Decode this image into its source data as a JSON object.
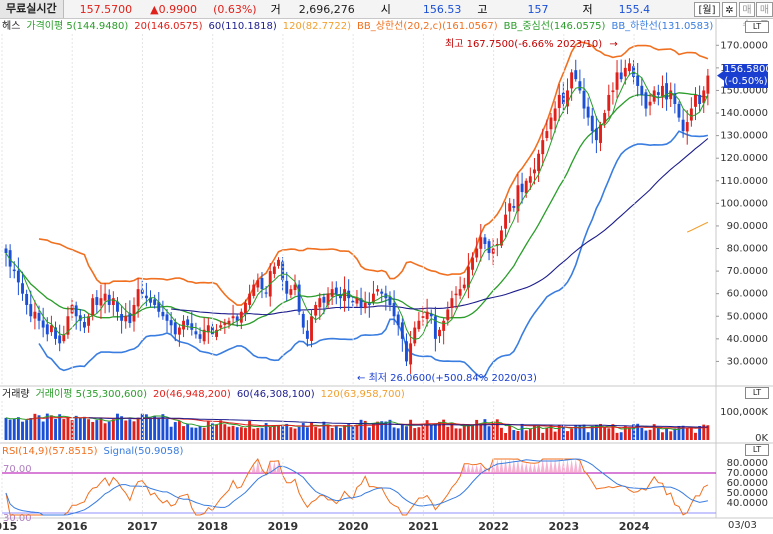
{
  "topbar": {
    "label": "무료실시간",
    "price": "157.5700",
    "change": "▲0.9900",
    "change_pct": "(0.63%)",
    "volume_label": "거",
    "volume": "2,696,276",
    "open_label": "시",
    "open": "156.53",
    "high_label": "고",
    "high": "157",
    "low_label": "저",
    "low": "155.4",
    "period_button": "[월]",
    "settings_icon": "gear-icon",
    "buy_button": "매수",
    "sell_button": "매도"
  },
  "price_legend": {
    "series": "헤스",
    "ma5": "가격이평 5(144.9480)",
    "ma20": "20(146.0575)",
    "ma60": "60(110.1818)",
    "ma120": "120(82.7722)",
    "bb_upper": "BB_상한선(20,2,c)(161.0567)",
    "bb_mid": "BB_중심선(146.0575)",
    "bb_lower": "BB_하한선(131.0583)"
  },
  "volume_legend": {
    "series": "거래량",
    "vma5": "거래이평 5(35,300,600)",
    "vma20": "20(46,948,200)",
    "vma60": "60(46,308,100)",
    "vma120": "120(63,958,700)"
  },
  "rsi_legend": {
    "rsi": "RSI(14,9)(57.8515)",
    "signal": "Signal(50.9058)"
  },
  "annotations": {
    "high": "최고 167.7500(-6.66% 2023/10)",
    "high_arrow": "→",
    "low_arrow": "←",
    "low": "최저 26.0600(+500.84% 2020/03)"
  },
  "current_price_box": {
    "price": "156.5800",
    "pct": "(-0.50%)"
  },
  "panel_buttons": {
    "price_panel": "LT",
    "volume_panel": "LT",
    "rsi_panel": "LT"
  },
  "colors": {
    "up": "#e0201a",
    "down": "#1a4fd6",
    "ma5": "#2a9d2a",
    "ma20": "#e0201a",
    "ma60": "#1c1c8c",
    "ma120": "#f0a030",
    "bb_upper": "#f07020",
    "bb_mid": "#2a9d2a",
    "bb_lower": "#3a7de0",
    "rsi": "#f07020",
    "signal": "#3a7de0",
    "rsi_band": "#b000b0"
  },
  "chart_data": [
    {
      "type": "candlestick",
      "title": "헤스",
      "x_labels": [
        "2015",
        "2016",
        "2017",
        "2018",
        "2019",
        "2020",
        "2021",
        "2022",
        "2023",
        "2024"
      ],
      "x_range": [
        "2015/01",
        "2025/03"
      ],
      "ylim": [
        20,
        175
      ],
      "y_ticks": [
        30,
        40,
        50,
        60,
        70,
        80,
        90,
        100,
        110,
        120,
        130,
        140,
        150,
        160,
        170
      ],
      "y_tick_labels": [
        "30.0000",
        "40.0000",
        "50.0000",
        "60.0000",
        "70.0000",
        "80.0000",
        "90.0000",
        "100.0000",
        "110.0000",
        "120.0000",
        "130.0000",
        "140.0000",
        "150.0000",
        "160.0000",
        "170.0000"
      ],
      "close": [
        78,
        72,
        70,
        65,
        60,
        55,
        50,
        52,
        48,
        45,
        42,
        46,
        40,
        38,
        42,
        50,
        55,
        50,
        48,
        45,
        50,
        58,
        55,
        58,
        60,
        55,
        58,
        52,
        48,
        50,
        47,
        55,
        62,
        60,
        58,
        56,
        55,
        52,
        50,
        48,
        46,
        42,
        45,
        48,
        46,
        44,
        42,
        40,
        44,
        46,
        42,
        44,
        46,
        47,
        48,
        50,
        48,
        52,
        56,
        60,
        64,
        66,
        62,
        60,
        70,
        72,
        75,
        66,
        60,
        62,
        64,
        52,
        45,
        40,
        50,
        55,
        58,
        56,
        60,
        62,
        60,
        58,
        62,
        58,
        56,
        58,
        54,
        56,
        55,
        60,
        62,
        60,
        58,
        55,
        50,
        46,
        40,
        30,
        38,
        45,
        48,
        50,
        52,
        50,
        40,
        44,
        48,
        53,
        58,
        60,
        62,
        64,
        72,
        76,
        80,
        85,
        82,
        78,
        80,
        82,
        88,
        95,
        100,
        98,
        108,
        105,
        110,
        112,
        115,
        122,
        128,
        132,
        138,
        142,
        148,
        144,
        150,
        158,
        155,
        150,
        142,
        138,
        132,
        128,
        135,
        140,
        148,
        150,
        158,
        155,
        160,
        162,
        156,
        152,
        148,
        142,
        145,
        150,
        148,
        152,
        146,
        150,
        144,
        138,
        132,
        136,
        142,
        148,
        144,
        150,
        156.58
      ],
      "high_marker": {
        "value": 167.75,
        "date": "2023/10"
      },
      "low_marker": {
        "value": 26.06,
        "date": "2020/03"
      },
      "current": 156.58,
      "lines": {
        "ma5": [],
        "ma20": [],
        "ma60": [],
        "ma120": []
      }
    },
    {
      "type": "bar",
      "title": "거래량",
      "y_ticks": [
        0,
        100000
      ],
      "y_tick_labels": [
        "0K",
        "100,000K"
      ]
    },
    {
      "type": "line",
      "title": "RSI",
      "ylim": [
        25,
        85
      ],
      "y_ticks": [
        40,
        50,
        60,
        70,
        80
      ],
      "y_tick_labels": [
        "40.0000",
        "50.0000",
        "60.0000",
        "70.0000",
        "80.0000"
      ],
      "bands": [
        30,
        70
      ],
      "band_labels": [
        "30.00",
        "70.00"
      ]
    }
  ],
  "x_axis_end": "03/03"
}
